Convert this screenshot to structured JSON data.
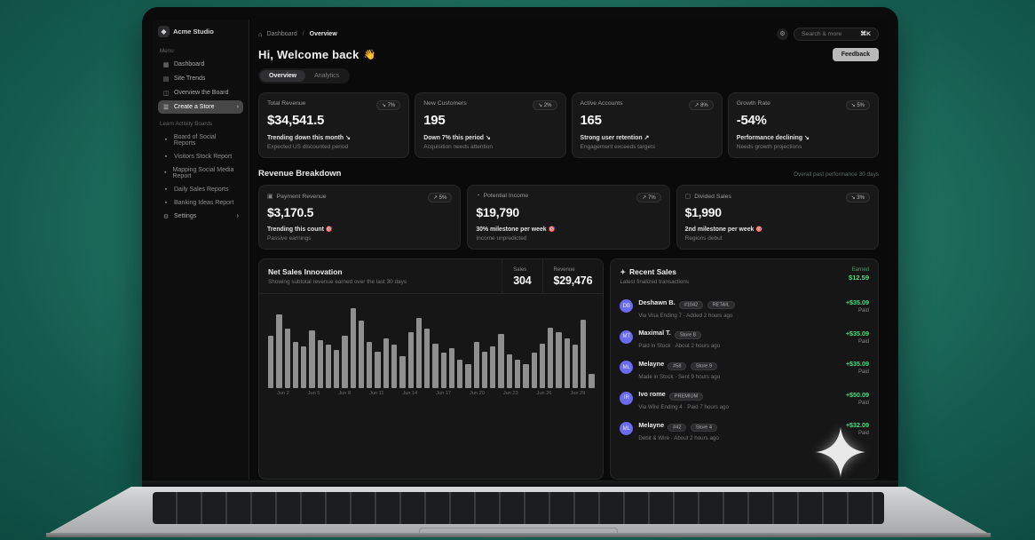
{
  "colors": {
    "accent_green": "#4ade80",
    "avatar": "#6b6bf0",
    "background_teal": "#23796b",
    "card_bg": "#181819"
  },
  "sidebar": {
    "brand": "Acme Studio",
    "section1": "Menu",
    "items": [
      {
        "icon": "grid",
        "label": "Dashboard",
        "active": false,
        "chevron": false
      },
      {
        "icon": "doc",
        "label": "Site Trends",
        "active": false,
        "chevron": false
      },
      {
        "icon": "panel",
        "label": "Overview the Board",
        "active": false,
        "chevron": false
      },
      {
        "icon": "users",
        "label": "Create a Store",
        "active": true,
        "chevron": true
      }
    ],
    "section2": "Learn Activity Boards",
    "reports": [
      {
        "icon": "dot",
        "label": "Board of Social Reports"
      },
      {
        "icon": "dot",
        "label": "Visitors Stock Report"
      },
      {
        "icon": "dot",
        "label": "Mapping Social Media Report"
      },
      {
        "icon": "dot",
        "label": "Daily Sales Reports"
      },
      {
        "icon": "dot",
        "label": "Banking Ideas Report"
      }
    ],
    "settings": "Settings"
  },
  "topbar": {
    "breadcrumb_root": "Dashboard",
    "breadcrumb_sep": "/",
    "breadcrumb_current": "Overview",
    "search_placeholder": "Search & more",
    "search_shortcut": "⌘K",
    "feedback_label": "Feedback"
  },
  "header": {
    "greeting": "Hi, Welcome back",
    "emoji": "👋"
  },
  "tabs": [
    {
      "label": "Overview",
      "active": true
    },
    {
      "label": "Analytics",
      "active": false
    }
  ],
  "stat_cards": [
    {
      "title": "Total Revenue",
      "badge": "↘ 7%",
      "value": "$34,541.5",
      "line": "Trending down this month ↘",
      "sub": "Expected US discounted period"
    },
    {
      "title": "New Customers",
      "badge": "↘ 2%",
      "value": "195",
      "line": "Down 7% this period ↘",
      "sub": "Acquisition needs attention"
    },
    {
      "title": "Active Accounts",
      "badge": "↗ 8%",
      "value": "165",
      "line": "Strong user retention ↗",
      "sub": "Engagement exceeds targets"
    },
    {
      "title": "Growth Rate",
      "badge": "↘ 5%",
      "value": "-54%",
      "line": "Performance declining ↘",
      "sub": "Needs growth projections"
    }
  ],
  "revenue": {
    "heading": "Revenue Breakdown",
    "meta": "Overall past performance 30 days",
    "cards": [
      {
        "icon": "wallet",
        "title": "Payment Revenue",
        "badge": "↗ 5%",
        "value": "$3,170.5",
        "line": "Trending this count",
        "line_icon": "🎯",
        "sub": "Passive earnings"
      },
      {
        "icon": "trend",
        "title": "Potential Income",
        "badge": "↗ 7%",
        "value": "$19,790",
        "line": "30% milestone per week",
        "line_icon": "🎯",
        "sub": "Income unpredicted"
      },
      {
        "icon": "box",
        "title": "Divided Sales",
        "badge": "↘ 3%",
        "value": "$1,990",
        "line": "2nd milestone per week",
        "line_icon": "🎯",
        "sub": "Regions debut"
      }
    ]
  },
  "chart": {
    "title": "Net Sales Innovation",
    "desc": "Showing subtotal revenue earned over the last 30 days",
    "stats": [
      {
        "label": "Sales",
        "value": "304"
      },
      {
        "label": "Revenue",
        "value": "$29,476"
      }
    ]
  },
  "chart_data": {
    "type": "bar",
    "title": "Net Sales Innovation",
    "ylabel": "relative height %",
    "ylim": [
      0,
      100
    ],
    "values": [
      66,
      92,
      74,
      58,
      52,
      72,
      60,
      54,
      48,
      66,
      100,
      84,
      58,
      46,
      62,
      54,
      40,
      70,
      88,
      74,
      56,
      44,
      50,
      36,
      30,
      58,
      46,
      52,
      68,
      42,
      36,
      30,
      44,
      56,
      76,
      70,
      62,
      54,
      86,
      18
    ],
    "tick_labels": [
      "Jun 2",
      "Jun 5",
      "Jun 8",
      "Jun 11",
      "Jun 14",
      "Jun 17",
      "Jun 20",
      "Jun 23",
      "Jun 26",
      "Jun 29"
    ],
    "grid": false,
    "legend": false,
    "bar_color": "#8f8f8f"
  },
  "sales": {
    "title": "Recent Sales",
    "desc": "Latest finalized transactions",
    "earned_label": "Earned",
    "earned_value": "$12.59",
    "rows": [
      {
        "initials": "DB",
        "name": "Deshawn B.",
        "badges": [
          "#1042",
          "RETAIL"
        ],
        "note": "Via Visa Ending 7 · Added 2 hours ago",
        "amount": "+$35.09",
        "status": "Paid"
      },
      {
        "initials": "MT",
        "name": "Maximal T.",
        "badges": [
          "Store 8"
        ],
        "note": "Paid in Stock · About 2 hours ago",
        "amount": "+$35.09",
        "status": "Paid"
      },
      {
        "initials": "ML",
        "name": "Melayne",
        "badges": [
          "#58",
          "Store 9"
        ],
        "note": "Made in Stock · Sent 9 hours ago",
        "amount": "+$35.09",
        "status": "Paid"
      },
      {
        "initials": "IR",
        "name": "Ivo rome",
        "badges": [
          "PREMIUM"
        ],
        "note": "Via Wire Ending 4 · Paid 7 hours ago",
        "amount": "+$50.09",
        "status": "Paid"
      },
      {
        "initials": "ML",
        "name": "Melayne",
        "badges": [
          "#42",
          "Store 4"
        ],
        "note": "Debit & Wire · About 2 hours ago",
        "amount": "+$32.09",
        "status": "Paid"
      }
    ]
  }
}
